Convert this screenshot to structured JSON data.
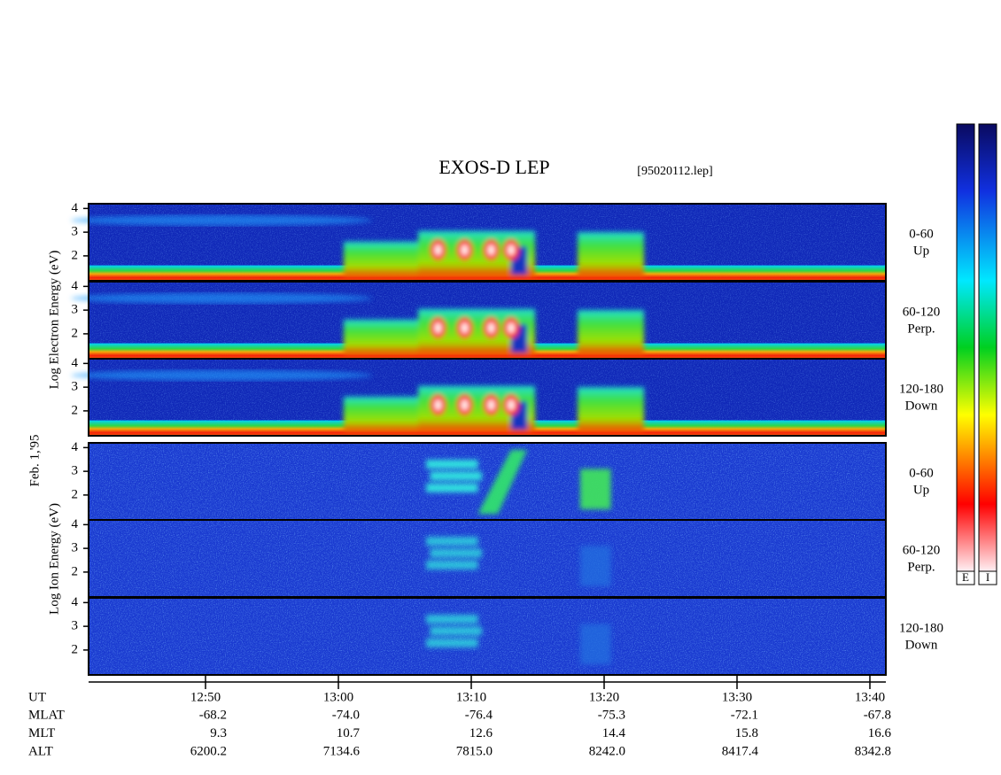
{
  "chart_data": {
    "type": "spectrogram",
    "title": "EXOS-D LEP",
    "file": "[95020112.lep]",
    "electron_label": "Log Electron Energy (eV)",
    "date": "Feb. 1,'95",
    "ion_label": "Log Ion Energy (eV)",
    "xlim": [
      761.2,
      821.2
    ],
    "xticks": [
      {
        "value": 770,
        "label": "12:50"
      },
      {
        "value": 780,
        "label": "13:00"
      },
      {
        "value": 790,
        "label": "13:10"
      },
      {
        "value": 800,
        "label": "13:20"
      },
      {
        "value": 810,
        "label": "13:30"
      },
      {
        "value": 820,
        "label": "13:40"
      }
    ],
    "ylim": [
      0.95,
      4.2
    ],
    "yticks": [
      2,
      3,
      4
    ],
    "panels": [
      {
        "species": "electron",
        "labels": [
          "0-60",
          "Up"
        ]
      },
      {
        "species": "electron",
        "labels": [
          "60-120",
          "Perp."
        ]
      },
      {
        "species": "electron",
        "labels": [
          "120-180",
          "Down"
        ]
      },
      {
        "species": "ion",
        "labels": [
          "0-60",
          "Up"
        ]
      },
      {
        "species": "ion",
        "labels": [
          "60-120",
          "Perp."
        ]
      },
      {
        "species": "ion",
        "labels": [
          "120-180",
          "Down"
        ]
      }
    ],
    "colorbars": [
      "E",
      "I"
    ],
    "ephemeris": {
      "first_label": "UT",
      "rows": [
        {
          "name": "MLAT",
          "values": [
            "-68.2",
            "-74.0",
            "-76.4",
            "-75.3",
            "-72.1",
            "-67.8"
          ]
        },
        {
          "name": "MLT",
          "values": [
            "9.3",
            "10.7",
            "12.6",
            "14.4",
            "15.8",
            "16.6"
          ]
        },
        {
          "name": "ALT",
          "values": [
            "6200.2",
            "7134.6",
            "7815.0",
            "8242.0",
            "8417.4",
            "8342.8"
          ]
        }
      ]
    }
  }
}
